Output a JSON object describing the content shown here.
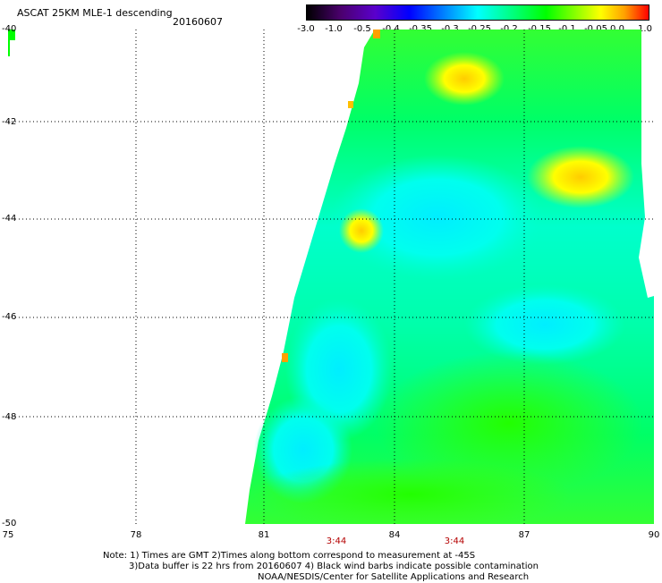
{
  "header": {
    "title": "ASCAT 25KM MLE-1 descending",
    "date": "20160607"
  },
  "colorbar": {
    "ticks": [
      "-3.0",
      "-1.0",
      "-0.5",
      "-0.4",
      "-0.35",
      "-0.3",
      "-0.25",
      "-0.2",
      "-0.15",
      "-0.1",
      "-0.05",
      "0.0",
      "1.0"
    ]
  },
  "axes": {
    "y_labels": [
      "-40",
      "-42",
      "-44",
      "-46",
      "-48",
      "-50"
    ],
    "x_labels": [
      "75",
      "78",
      "81",
      "84",
      "87",
      "90"
    ],
    "times": [
      "3:44",
      "3:44"
    ]
  },
  "note": {
    "line1": "Note: 1) Times are GMT 2)Times along bottom correspond to measurement at -45S",
    "line2": "3)Data buffer is 22 hrs from 20160607 4) Black wind barbs indicate possible contamination",
    "line3": "NOAA/NESDIS/Center for Satellite Applications and Research"
  },
  "colors": {
    "cyan": "#00ffe0",
    "green": "#00ff00",
    "yellow": "#ffff00",
    "orange": "#ffa000"
  }
}
